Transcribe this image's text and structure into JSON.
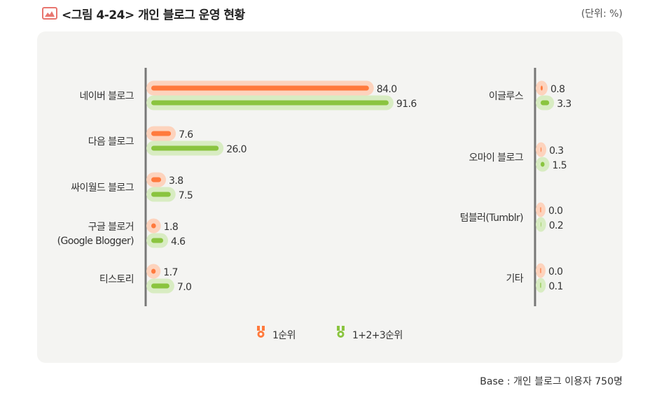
{
  "header": {
    "title": "<그림 4-24> 개인 블로그 운영 현황",
    "unit": "(단위: %)"
  },
  "footer": {
    "base": "Base : 개인 블로그 이용자 750명"
  },
  "colors": {
    "first": "#ff7a3d",
    "first_halo": "#fdd3bd",
    "total": "#8ac43f",
    "total_halo": "#d8ecc2",
    "axis": "#777777"
  },
  "chart_data": [
    {
      "type": "bar",
      "orientation": "horizontal",
      "categories": [
        "네이버 블로그",
        "다음 블로그",
        "싸이월드 블로그",
        "구글 블로거\n(Google Blogger)",
        "티스토리"
      ],
      "series": [
        {
          "name": "1순위",
          "values": [
            84.0,
            7.6,
            3.8,
            1.8,
            1.7
          ]
        },
        {
          "name": "1+2+3순위",
          "values": [
            91.6,
            26.0,
            7.5,
            4.6,
            7.0
          ]
        }
      ],
      "xlim": [
        0,
        100
      ]
    },
    {
      "type": "bar",
      "orientation": "horizontal",
      "categories": [
        "이글루스",
        "오마이 블로그",
        "텀블러(Tumblr)",
        "기타"
      ],
      "series": [
        {
          "name": "1순위",
          "values": [
            0.8,
            0.3,
            0.0,
            0.0
          ]
        },
        {
          "name": "1+2+3순위",
          "values": [
            3.3,
            1.5,
            0.2,
            0.1
          ]
        }
      ],
      "xlim": [
        0,
        100
      ]
    }
  ],
  "legend": {
    "position": "bottom",
    "items": [
      "1순위",
      "1+2+3순위"
    ]
  }
}
